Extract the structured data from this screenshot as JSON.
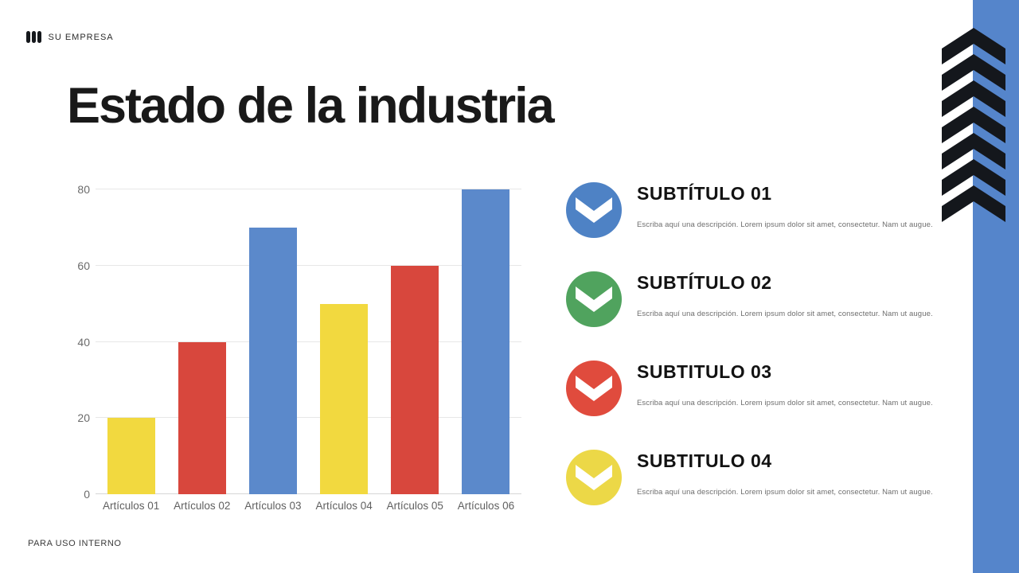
{
  "brand": {
    "name": "SU EMPRESA",
    "logo_icon": "three-bars-icon"
  },
  "page": {
    "title": "Estado de la industria",
    "footer_note": "PARA USO INTERNO"
  },
  "chart_data": {
    "type": "bar",
    "categories": [
      "Artículos 01",
      "Artículos 02",
      "Artículos 03",
      "Artículos 04",
      "Artículos 05",
      "Artículos 06"
    ],
    "values": [
      20,
      40,
      70,
      50,
      60,
      80
    ],
    "bar_colors": [
      "#F2D93F",
      "#D8473D",
      "#5B89CB",
      "#F2D93F",
      "#D8473D",
      "#5B89CB"
    ],
    "title": "",
    "xlabel": "",
    "ylabel": "",
    "ylim": [
      0,
      80
    ],
    "yticks": [
      0,
      20,
      40,
      60,
      80
    ],
    "grid": true,
    "legend": false
  },
  "subtitles": [
    {
      "heading": "SUBTÍTULO 01",
      "description": "Escriba aquí una descripción. Lorem ipsum dolor sit amet, consectetur. Nam ut augue.",
      "icon": "chevron-down-icon",
      "color": "#4E82C5"
    },
    {
      "heading": "SUBTÍTULO 02",
      "description": "Escriba aquí una descripción. Lorem ipsum dolor sit amet, consectetur. Nam ut augue.",
      "icon": "chevron-down-icon",
      "color": "#50A35E"
    },
    {
      "heading": "SUBTITULO 03",
      "description": "Escriba aquí una descripción. Lorem ipsum dolor sit amet, consectetur. Nam ut augue.",
      "icon": "chevron-down-icon",
      "color": "#E04B3D"
    },
    {
      "heading": "SUBTITULO 04",
      "description": "Escriba aquí una descripción. Lorem ipsum dolor sit amet, consectetur. Nam ut augue.",
      "icon": "chevron-down-icon",
      "color": "#ECD847"
    }
  ],
  "decor": {
    "band_color": "#5585CB",
    "chevron_color": "#14171C",
    "chevron_count": 7
  }
}
